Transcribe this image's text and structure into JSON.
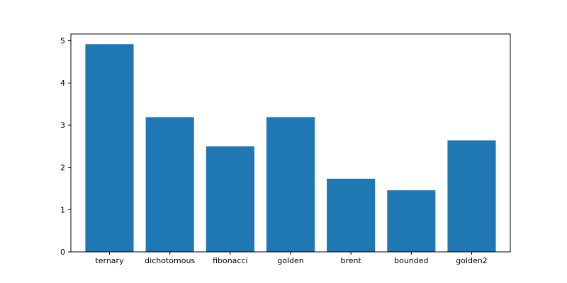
{
  "colors": {
    "bar": "#1f77b4",
    "axis": "#000000",
    "background": "#ffffff"
  },
  "chart_data": {
    "type": "bar",
    "title": "",
    "xlabel": "",
    "ylabel": "",
    "categories": [
      "ternary",
      "dichotomous",
      "fibonacci",
      "golden",
      "brent",
      "bounded",
      "golden2"
    ],
    "values": [
      4.92,
      3.19,
      2.5,
      3.19,
      1.73,
      1.46,
      2.64
    ],
    "ylim": [
      0,
      5.16
    ],
    "yticks": [
      0,
      1,
      2,
      3,
      4,
      5
    ],
    "grid": false,
    "legend": "none"
  }
}
